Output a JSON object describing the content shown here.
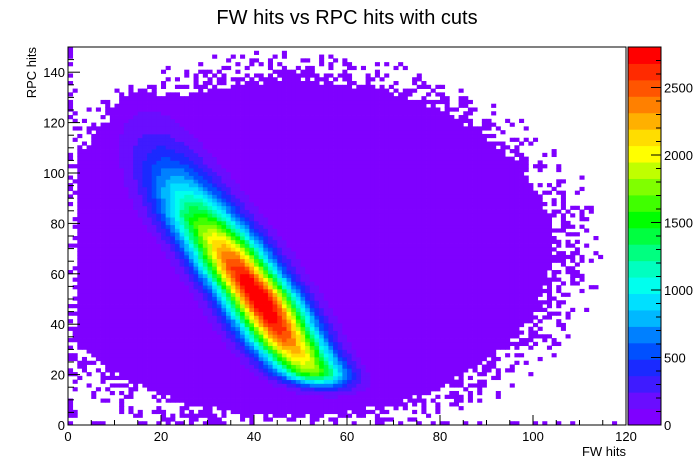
{
  "chart_data": {
    "type": "heatmap",
    "title": "FW hits vs RPC hits with cuts",
    "xlabel": "FW hits",
    "ylabel": "RPC hits",
    "xlim": [
      0,
      120
    ],
    "ylim": [
      0,
      150
    ],
    "x_ticks": [
      0,
      20,
      40,
      60,
      80,
      100,
      120
    ],
    "x_tick_labels": [
      "0",
      "20",
      "40",
      "60",
      "80",
      "100",
      "120"
    ],
    "y_ticks": [
      0,
      20,
      40,
      60,
      80,
      100,
      120,
      140
    ],
    "y_tick_labels": [
      "0",
      "20",
      "40",
      "60",
      "80",
      "100",
      "120",
      "140"
    ],
    "z_range": [
      0,
      2800
    ],
    "z_ticks": [
      0,
      500,
      1000,
      1500,
      2000,
      2500
    ],
    "z_tick_labels": [
      "0",
      "500",
      "1000",
      "1500",
      "2000",
      "2500"
    ],
    "palette": [
      "#7f00ff",
      "#6a0dff",
      "#3f1bff",
      "#1a2aff",
      "#0050ff",
      "#0080ff",
      "#00b8ff",
      "#00e0ff",
      "#00ffee",
      "#00ffc0",
      "#00ff80",
      "#00ff40",
      "#00ff00",
      "#40ff00",
      "#80ff00",
      "#c0ff00",
      "#ffff00",
      "#ffdd00",
      "#ffb000",
      "#ff8000",
      "#ff5500",
      "#ff2a00",
      "#ff0000"
    ],
    "peak": {
      "x": 41,
      "y": 50,
      "count": 2800
    },
    "ridge": [
      {
        "x": 17,
        "y": 125
      },
      {
        "x": 20,
        "y": 110
      },
      {
        "x": 24,
        "y": 96
      },
      {
        "x": 28,
        "y": 84
      },
      {
        "x": 33,
        "y": 72
      },
      {
        "x": 37,
        "y": 61
      },
      {
        "x": 41,
        "y": 51
      },
      {
        "x": 44,
        "y": 42
      },
      {
        "x": 47,
        "y": 33
      },
      {
        "x": 50,
        "y": 26
      }
    ]
  }
}
